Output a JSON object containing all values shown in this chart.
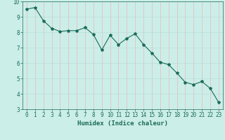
{
  "xlabel": "Humidex (Indice chaleur)",
  "x": [
    0,
    1,
    2,
    3,
    4,
    5,
    6,
    7,
    8,
    9,
    10,
    11,
    12,
    13,
    14,
    15,
    16,
    17,
    18,
    19,
    20,
    21,
    22,
    23
  ],
  "y": [
    9.5,
    9.6,
    8.75,
    8.25,
    8.05,
    8.1,
    8.1,
    8.3,
    7.85,
    6.85,
    7.8,
    7.2,
    7.6,
    7.9,
    7.2,
    6.65,
    6.05,
    5.9,
    5.35,
    4.75,
    4.6,
    4.8,
    4.35,
    3.45
  ],
  "line_color": "#1a6b5a",
  "marker": "*",
  "marker_size": 3,
  "line_width": 0.8,
  "background_color": "#cceee8",
  "grid_color_h": "#b8ddd8",
  "grid_color_v": "#e8b8b8",
  "tick_color": "#1a6b5a",
  "label_color": "#1a6b5a",
  "ylim": [
    3,
    10
  ],
  "xlim": [
    -0.5,
    23.5
  ],
  "yticks": [
    3,
    4,
    5,
    6,
    7,
    8,
    9,
    10
  ],
  "xticks": [
    0,
    1,
    2,
    3,
    4,
    5,
    6,
    7,
    8,
    9,
    10,
    11,
    12,
    13,
    14,
    15,
    16,
    17,
    18,
    19,
    20,
    21,
    22,
    23
  ],
  "xlabel_fontsize": 6.5,
  "tick_fontsize": 5.5
}
